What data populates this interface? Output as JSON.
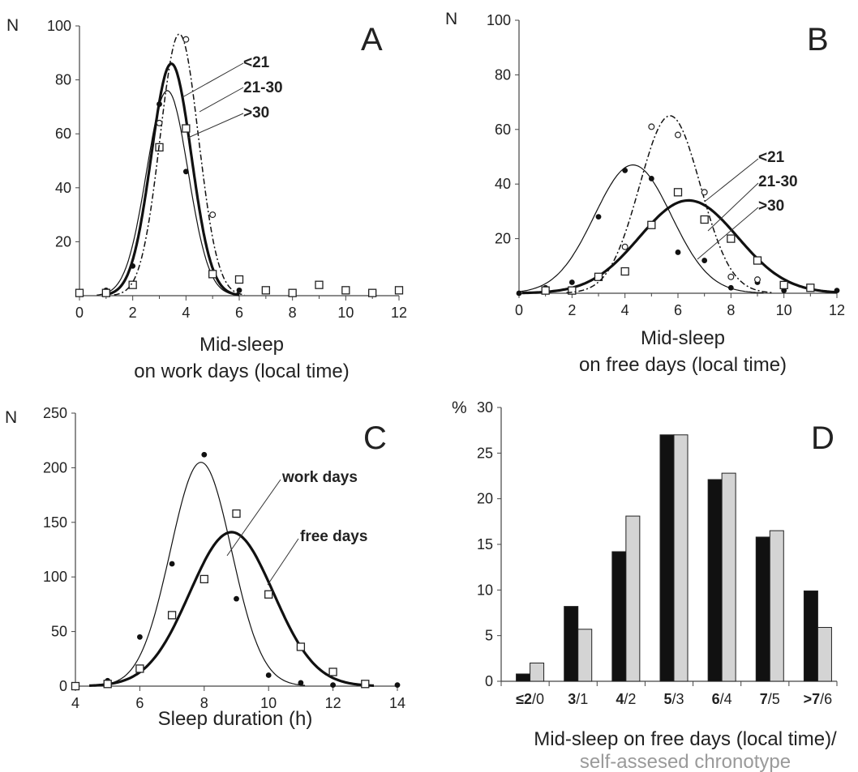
{
  "chart_data": [
    {
      "panel": "A",
      "type": "line",
      "ylabel": "N",
      "xlabel_line1": "Mid-sleep",
      "xlabel_line2": "on work days (local time)",
      "xlim": [
        0,
        12
      ],
      "ylim": [
        0,
        100
      ],
      "xticks": [
        "0",
        "2",
        "4",
        "6",
        "8",
        "10",
        "12"
      ],
      "yticks": [
        "20",
        "40",
        "60",
        "80",
        "100"
      ],
      "series": [
        {
          "name": "<21",
          "style": "thin",
          "curve": {
            "amp": 76,
            "mu": 3.3,
            "sigma": 0.78
          },
          "points": [
            {
              "x": 1,
              "y": 2,
              "m": "filled"
            },
            {
              "x": 2,
              "y": 11,
              "m": "filled"
            },
            {
              "x": 3,
              "y": 71,
              "m": "filled"
            },
            {
              "x": 4,
              "y": 46,
              "m": "filled"
            },
            {
              "x": 5,
              "y": 8,
              "m": "filled"
            },
            {
              "x": 6,
              "y": 2,
              "m": "filled"
            }
          ]
        },
        {
          "name": "21-30",
          "style": "thick",
          "curve": {
            "amp": 86,
            "mu": 3.45,
            "sigma": 0.75
          },
          "points": [
            {
              "x": 0,
              "y": 1,
              "m": "square"
            },
            {
              "x": 1,
              "y": 1,
              "m": "square"
            },
            {
              "x": 2,
              "y": 4,
              "m": "square"
            },
            {
              "x": 3,
              "y": 55,
              "m": "square"
            },
            {
              "x": 4,
              "y": 62,
              "m": "square"
            },
            {
              "x": 5,
              "y": 8,
              "m": "square"
            },
            {
              "x": 6,
              "y": 6,
              "m": "square"
            },
            {
              "x": 7,
              "y": 2,
              "m": "square"
            },
            {
              "x": 8,
              "y": 1,
              "m": "square"
            },
            {
              "x": 9,
              "y": 4,
              "m": "square"
            },
            {
              "x": 10,
              "y": 2,
              "m": "square"
            },
            {
              "x": 11,
              "y": 1,
              "m": "square"
            },
            {
              "x": 12,
              "y": 2,
              "m": "square"
            }
          ]
        },
        {
          "name": ">30",
          "style": "dash",
          "curve": {
            "amp": 97,
            "mu": 3.75,
            "sigma": 0.72
          },
          "points": [
            {
              "x": 3,
              "y": 64,
              "m": "open"
            },
            {
              "x": 4,
              "y": 95,
              "m": "open"
            },
            {
              "x": 5,
              "y": 30,
              "m": "open"
            }
          ]
        }
      ]
    },
    {
      "panel": "B",
      "type": "line",
      "ylabel": "N",
      "xlabel_line1": "Mid-sleep",
      "xlabel_line2": "on free days (local time)",
      "xlim": [
        0,
        12
      ],
      "ylim": [
        0,
        100
      ],
      "xticks": [
        "0",
        "2",
        "4",
        "6",
        "8",
        "10",
        "12"
      ],
      "yticks": [
        "20",
        "40",
        "60",
        "80",
        "100"
      ],
      "series": [
        {
          "name": "<21",
          "style": "thin",
          "curve": {
            "amp": 47,
            "mu": 4.3,
            "sigma": 1.45
          },
          "points": [
            {
              "x": 0,
              "y": 0,
              "m": "filled"
            },
            {
              "x": 1,
              "y": 2,
              "m": "filled"
            },
            {
              "x": 2,
              "y": 4,
              "m": "filled"
            },
            {
              "x": 3,
              "y": 28,
              "m": "filled"
            },
            {
              "x": 4,
              "y": 45,
              "m": "filled"
            },
            {
              "x": 5,
              "y": 42,
              "m": "filled"
            },
            {
              "x": 6,
              "y": 15,
              "m": "filled"
            },
            {
              "x": 7,
              "y": 12,
              "m": "filled"
            },
            {
              "x": 8,
              "y": 2,
              "m": "filled"
            },
            {
              "x": 9,
              "y": 4,
              "m": "filled"
            },
            {
              "x": 10,
              "y": 1,
              "m": "filled"
            },
            {
              "x": 11,
              "y": 2,
              "m": "filled"
            },
            {
              "x": 12,
              "y": 1,
              "m": "filled"
            }
          ]
        },
        {
          "name": "21-30",
          "style": "thick",
          "curve": {
            "amp": 34,
            "mu": 6.4,
            "sigma": 1.85
          },
          "points": [
            {
              "x": 1,
              "y": 1,
              "m": "square"
            },
            {
              "x": 2,
              "y": 1,
              "m": "square"
            },
            {
              "x": 3,
              "y": 6,
              "m": "square"
            },
            {
              "x": 4,
              "y": 8,
              "m": "square"
            },
            {
              "x": 5,
              "y": 25,
              "m": "square"
            },
            {
              "x": 6,
              "y": 37,
              "m": "square"
            },
            {
              "x": 7,
              "y": 27,
              "m": "square"
            },
            {
              "x": 8,
              "y": 20,
              "m": "square"
            },
            {
              "x": 9,
              "y": 12,
              "m": "square"
            },
            {
              "x": 10,
              "y": 3,
              "m": "square"
            },
            {
              "x": 11,
              "y": 2,
              "m": "square"
            }
          ]
        },
        {
          "name": ">30",
          "style": "dash",
          "curve": {
            "amp": 65,
            "mu": 5.7,
            "sigma": 1.15
          },
          "points": [
            {
              "x": 4,
              "y": 17,
              "m": "open"
            },
            {
              "x": 5,
              "y": 61,
              "m": "open"
            },
            {
              "x": 6,
              "y": 58,
              "m": "open"
            },
            {
              "x": 7,
              "y": 37,
              "m": "open"
            },
            {
              "x": 8,
              "y": 6,
              "m": "open"
            },
            {
              "x": 9,
              "y": 5,
              "m": "open"
            }
          ]
        }
      ]
    },
    {
      "panel": "C",
      "type": "line",
      "ylabel": "N",
      "xlabel": "Sleep duration (h)",
      "xlim": [
        4,
        14
      ],
      "ylim": [
        0,
        250
      ],
      "xticks": [
        "4",
        "6",
        "8",
        "10",
        "12",
        "14"
      ],
      "yticks": [
        "0",
        "50",
        "100",
        "150",
        "200",
        "250"
      ],
      "series": [
        {
          "name": "work days",
          "style": "thin",
          "curve": {
            "amp": 205,
            "mu": 7.9,
            "sigma": 0.95
          },
          "points": [
            {
              "x": 5,
              "y": 5,
              "m": "filled"
            },
            {
              "x": 6,
              "y": 45,
              "m": "filled"
            },
            {
              "x": 7,
              "y": 112,
              "m": "filled"
            },
            {
              "x": 8,
              "y": 212,
              "m": "filled"
            },
            {
              "x": 9,
              "y": 80,
              "m": "filled"
            },
            {
              "x": 10,
              "y": 10,
              "m": "filled"
            },
            {
              "x": 11,
              "y": 3,
              "m": "filled"
            },
            {
              "x": 12,
              "y": 1,
              "m": "filled"
            },
            {
              "x": 13,
              "y": 1,
              "m": "filled"
            },
            {
              "x": 14,
              "y": 1,
              "m": "filled"
            }
          ]
        },
        {
          "name": "free days",
          "style": "thick",
          "curve": {
            "amp": 141,
            "mu": 8.85,
            "sigma": 1.3
          },
          "points": [
            {
              "x": 4,
              "y": 0,
              "m": "square"
            },
            {
              "x": 5,
              "y": 2,
              "m": "square"
            },
            {
              "x": 6,
              "y": 16,
              "m": "square"
            },
            {
              "x": 7,
              "y": 65,
              "m": "square"
            },
            {
              "x": 8,
              "y": 98,
              "m": "square"
            },
            {
              "x": 9,
              "y": 158,
              "m": "square"
            },
            {
              "x": 10,
              "y": 84,
              "m": "square"
            },
            {
              "x": 11,
              "y": 36,
              "m": "square"
            },
            {
              "x": 12,
              "y": 13,
              "m": "square"
            },
            {
              "x": 13,
              "y": 2,
              "m": "square"
            }
          ]
        }
      ]
    },
    {
      "panel": "D",
      "type": "bar",
      "ylabel": "%",
      "xlabel_line1": "Mid-sleep on free days (local time)/",
      "xlabel_line2": "self-assesed chronotype",
      "ylim": [
        0,
        30
      ],
      "yticks": [
        "0",
        "5",
        "10",
        "15",
        "20",
        "25",
        "30"
      ],
      "categories": [
        {
          "bold": "≤2",
          "rest": "/0"
        },
        {
          "bold": "3",
          "rest": "/1"
        },
        {
          "bold": "4",
          "rest": "/2"
        },
        {
          "bold": "5",
          "rest": "/3"
        },
        {
          "bold": "6",
          "rest": "/4"
        },
        {
          "bold": "7",
          "rest": "/5"
        },
        {
          "bold": ">7",
          "rest": "/6"
        }
      ],
      "series": [
        {
          "color": "#111111",
          "values": [
            0.8,
            8.2,
            14.2,
            27,
            22.1,
            15.8,
            9.9
          ]
        },
        {
          "color": "#d4d4d4",
          "values": [
            2.0,
            5.7,
            18.1,
            27,
            22.8,
            16.5,
            5.9
          ]
        }
      ]
    }
  ]
}
